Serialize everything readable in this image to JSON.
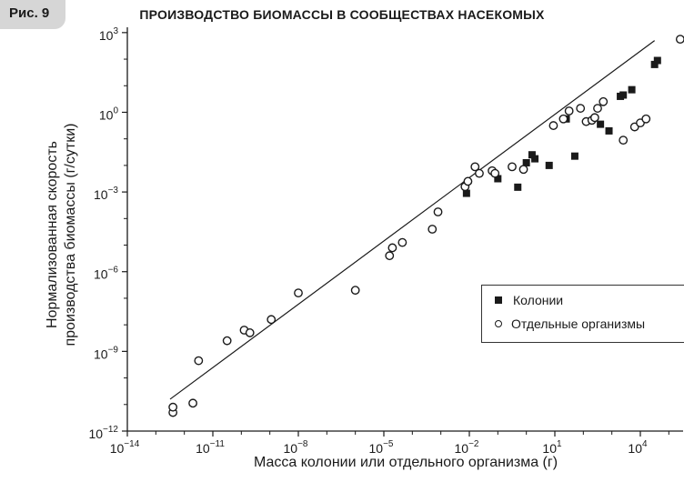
{
  "figure_label": "Рис. 9",
  "chart_data": {
    "type": "scatter",
    "title": "ПРОИЗВОДСТВО БИОМАССЫ В СООБЩЕСТВАХ НАСЕКОМЫХ",
    "xlabel": "Масса колонии или отдельного организма (г)",
    "ylabel": "Нормализованная скорость производства биомассы (г/сутки)",
    "xscale": "log",
    "yscale": "log",
    "xlim_log10": [
      -14,
      5.5
    ],
    "ylim_log10": [
      -12,
      3.2
    ],
    "x_ticks_log10": [
      -14,
      -11,
      -8,
      -5,
      -2,
      1,
      4
    ],
    "y_ticks_log10": [
      -12,
      -9,
      -6,
      -3,
      0,
      3
    ],
    "tick_label_base": "10",
    "legend_position": "lower-right",
    "fit_line_log10": [
      [
        -12.5,
        -10.8
      ],
      [
        4.5,
        2.7
      ]
    ],
    "series": [
      {
        "name": "Колонии",
        "marker": "filled-square",
        "points_log10": [
          [
            -2.1,
            -3.05
          ],
          [
            -1.0,
            -2.5
          ],
          [
            -0.3,
            -2.82
          ],
          [
            0.0,
            -1.9
          ],
          [
            0.2,
            -1.6
          ],
          [
            0.3,
            -1.75
          ],
          [
            0.8,
            -2.0
          ],
          [
            1.4,
            -0.25
          ],
          [
            1.7,
            -1.65
          ],
          [
            2.6,
            -0.45
          ],
          [
            2.9,
            -0.7
          ],
          [
            3.3,
            0.6
          ],
          [
            3.4,
            0.65
          ],
          [
            3.7,
            0.85
          ],
          [
            4.5,
            1.8
          ],
          [
            4.6,
            1.95
          ]
        ]
      },
      {
        "name": "Отдельные организмы",
        "marker": "open-circle",
        "points_log10": [
          [
            -12.4,
            -11.3
          ],
          [
            -12.4,
            -11.1
          ],
          [
            -11.7,
            -10.95
          ],
          [
            -11.5,
            -9.35
          ],
          [
            -10.5,
            -8.6
          ],
          [
            -9.9,
            -8.2
          ],
          [
            -9.7,
            -8.3
          ],
          [
            -8.95,
            -7.8
          ],
          [
            -8.0,
            -6.8
          ],
          [
            -6.0,
            -6.7
          ],
          [
            -4.8,
            -5.4
          ],
          [
            -4.7,
            -5.1
          ],
          [
            -4.35,
            -4.9
          ],
          [
            -3.3,
            -4.4
          ],
          [
            -3.1,
            -3.75
          ],
          [
            -2.15,
            -2.8
          ],
          [
            -2.05,
            -2.6
          ],
          [
            -1.8,
            -2.05
          ],
          [
            -1.65,
            -2.3
          ],
          [
            -1.2,
            -2.2
          ],
          [
            -1.1,
            -2.3
          ],
          [
            -0.5,
            -2.05
          ],
          [
            -0.1,
            -2.15
          ],
          [
            0.95,
            -0.5
          ],
          [
            1.3,
            -0.25
          ],
          [
            1.5,
            0.05
          ],
          [
            1.9,
            0.15
          ],
          [
            2.1,
            -0.35
          ],
          [
            2.3,
            -0.3
          ],
          [
            2.4,
            -0.2
          ],
          [
            2.5,
            0.15
          ],
          [
            2.7,
            0.4
          ],
          [
            3.4,
            -1.05
          ],
          [
            3.8,
            -0.55
          ],
          [
            4.0,
            -0.4
          ],
          [
            4.2,
            -0.25
          ],
          [
            5.4,
            2.75
          ]
        ]
      }
    ]
  }
}
